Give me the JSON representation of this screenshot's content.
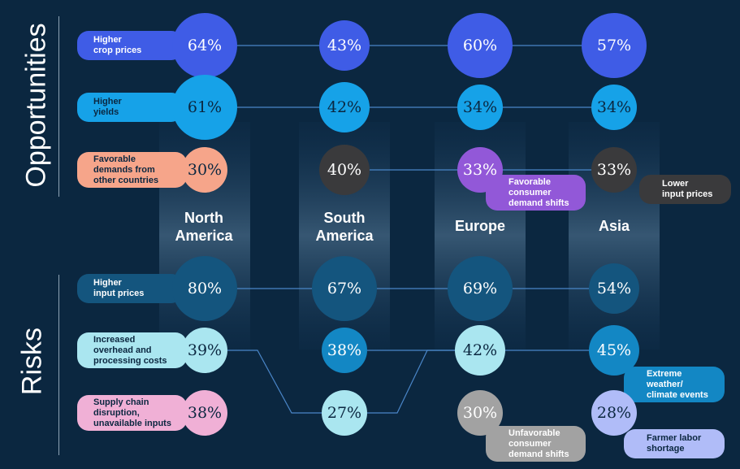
{
  "colors": {
    "background": "#0b2740",
    "connector": "#4a86c8",
    "divider": "#8ea3b5"
  },
  "sections": {
    "opportunities": "Opportunities",
    "risks": "Risks"
  },
  "regions": [
    "North\nAmerica",
    "South\nAmerica",
    "Europe",
    "Asia"
  ],
  "chart_data": {
    "type": "table",
    "regions": [
      "North America",
      "South America",
      "Europe",
      "Asia"
    ],
    "opportunities": [
      {
        "name": "Higher crop prices",
        "label": "Higher\ncrop prices",
        "color": "#3f5ce6",
        "text_color": "#ffffff",
        "values": [
          64,
          43,
          60,
          57
        ]
      },
      {
        "name": "Higher yields",
        "label": "Higher\nyields",
        "color": "#16a2e8",
        "text_color": "#0b2740",
        "values": [
          61,
          42,
          34,
          34
        ]
      },
      {
        "name": "Favorable demands from other countries",
        "label": "Favorable\ndemands from\nother countries",
        "color": "#f6a58a",
        "text_color": "#0b2740",
        "values": [
          30,
          null,
          null,
          null
        ]
      },
      {
        "name": "Favorable consumer demand shifts",
        "label": "Favorable\nconsumer\ndemand shifts",
        "color": "#9258d8",
        "text_color": "#ffffff",
        "values": [
          null,
          null,
          33,
          null
        ]
      },
      {
        "name": "Lower input prices",
        "label": "Lower\ninput prices",
        "color": "#3a3a3c",
        "text_color": "#ffffff",
        "values": [
          null,
          40,
          null,
          33
        ]
      }
    ],
    "risks": [
      {
        "name": "Higher input prices",
        "label": "Higher\ninput prices",
        "color": "#14557e",
        "text_color": "#ffffff",
        "values": [
          80,
          67,
          69,
          54
        ]
      },
      {
        "name": "Increased overhead and processing costs",
        "label": "Increased\noverhead and\nprocessing costs",
        "color": "#aae6f0",
        "text_color": "#0b2740",
        "values": [
          39,
          27,
          42,
          null
        ]
      },
      {
        "name": "Supply chain disruption, unavailable inputs",
        "label": "Supply chain\ndisruption,\nunavailable inputs",
        "color": "#f0b0d6",
        "text_color": "#0b2740",
        "values": [
          38,
          null,
          null,
          null
        ]
      },
      {
        "name": "Extreme weather/ climate events",
        "label": "Extreme\nweather/\nclimate events",
        "color": "#1387c4",
        "text_color": "#ffffff",
        "values": [
          null,
          38,
          null,
          45
        ]
      },
      {
        "name": "Unfavorable consumer demand shifts",
        "label": "Unfavorable\nconsumer\ndemand shifts",
        "color": "#a2a2a2",
        "text_color": "#ffffff",
        "values": [
          null,
          null,
          30,
          null
        ]
      },
      {
        "name": "Farmer labor shortage",
        "label": "Farmer labor\nshortage",
        "color": "#b0bcf8",
        "text_color": "#0b2740",
        "values": [
          null,
          null,
          null,
          28
        ]
      }
    ]
  }
}
